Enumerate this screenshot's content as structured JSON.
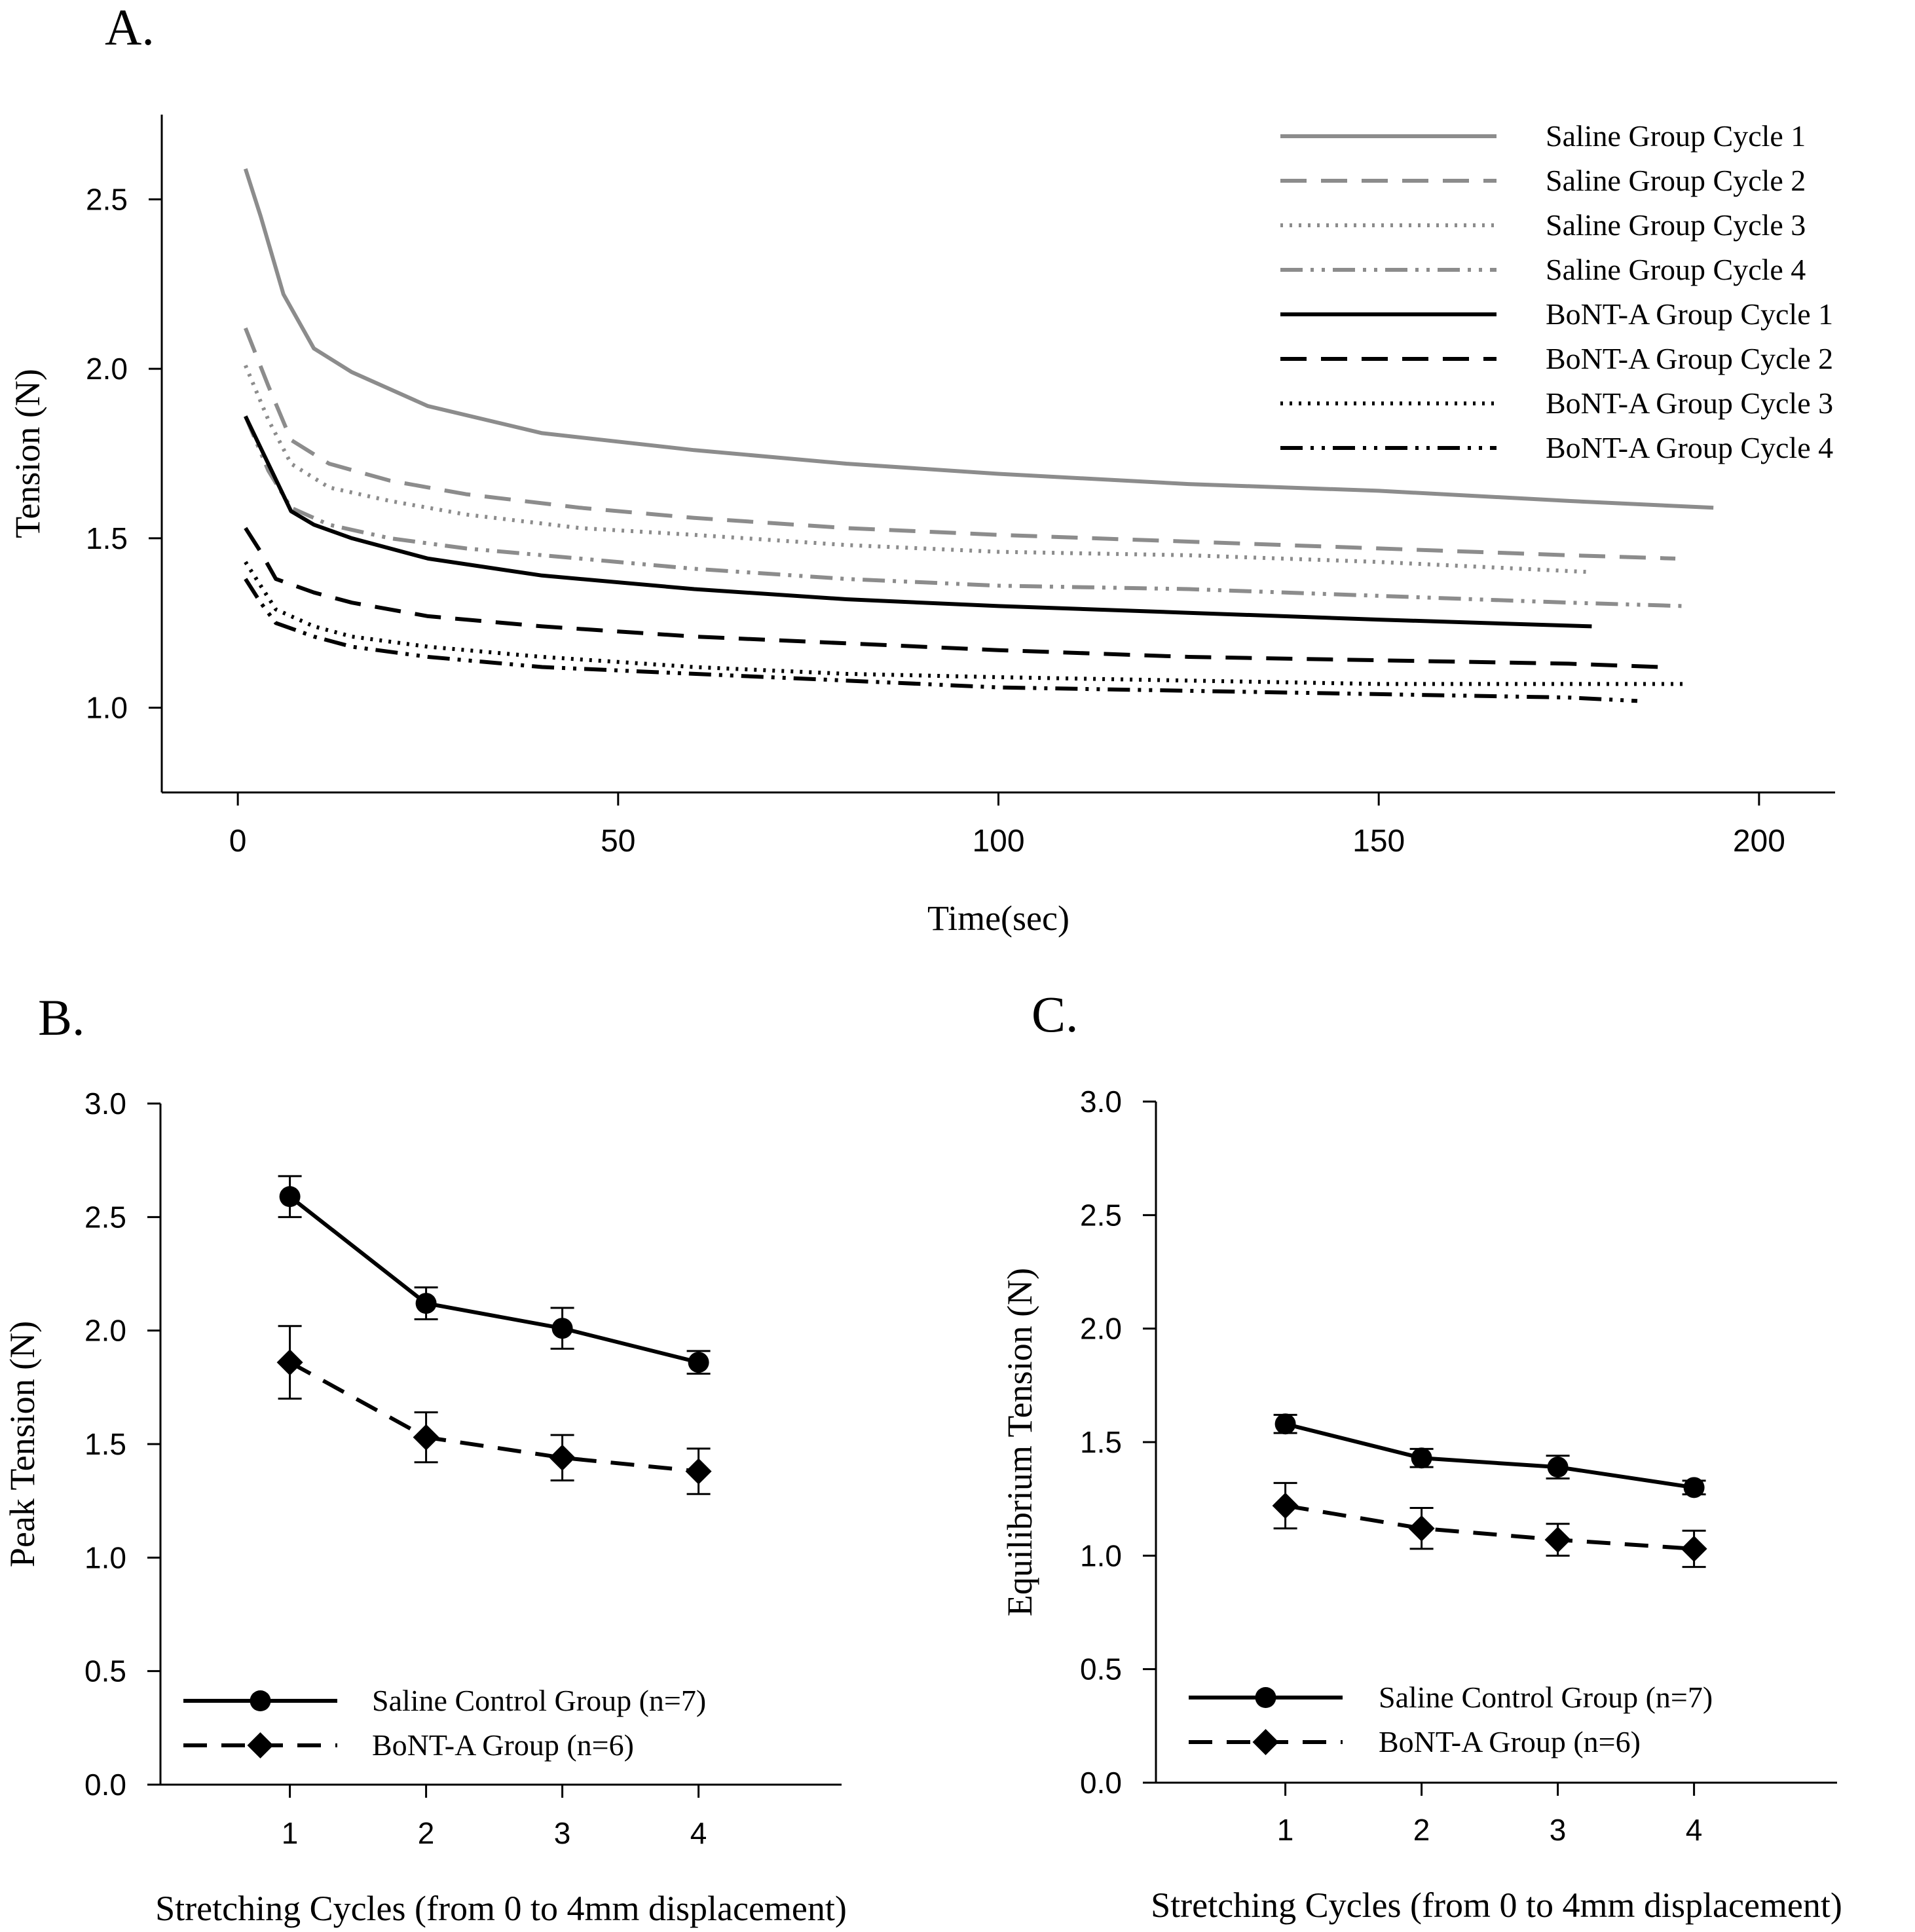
{
  "chart_data": [
    {
      "panel": "A.",
      "type": "line",
      "xlabel": "Time(sec)",
      "ylabel": "Tension (N)",
      "xlim": [
        -10,
        210
      ],
      "ylim": [
        0.75,
        2.75
      ],
      "xticks": [
        0,
        50,
        100,
        150,
        200
      ],
      "yticks": [
        1.0,
        1.5,
        2.0,
        2.5
      ],
      "legend_position": "top-right",
      "series": [
        {
          "name": "Saline Group Cycle 1",
          "color": "#8c8c8c",
          "dash": "solid",
          "x": [
            1,
            3,
            6,
            10,
            15,
            25,
            40,
            60,
            80,
            100,
            125,
            150,
            175,
            194
          ],
          "y": [
            2.59,
            2.45,
            2.22,
            2.06,
            1.99,
            1.89,
            1.81,
            1.76,
            1.72,
            1.69,
            1.66,
            1.64,
            1.61,
            1.59
          ]
        },
        {
          "name": "Saline Group Cycle 2",
          "color": "#8c8c8c",
          "dash": "longdash",
          "x": [
            1,
            4,
            7,
            12,
            20,
            30,
            45,
            60,
            80,
            100,
            125,
            150,
            175,
            189
          ],
          "y": [
            2.12,
            1.95,
            1.79,
            1.72,
            1.67,
            1.63,
            1.59,
            1.56,
            1.53,
            1.51,
            1.49,
            1.47,
            1.45,
            1.44
          ]
        },
        {
          "name": "Saline Group Cycle 3",
          "color": "#8c8c8c",
          "dash": "dot",
          "x": [
            1,
            4,
            7,
            12,
            20,
            30,
            45,
            60,
            80,
            100,
            125,
            150,
            178
          ],
          "y": [
            2.01,
            1.85,
            1.72,
            1.65,
            1.61,
            1.57,
            1.53,
            1.51,
            1.48,
            1.46,
            1.45,
            1.43,
            1.4
          ]
        },
        {
          "name": "Saline Group Cycle 4",
          "color": "#8c8c8c",
          "dash": "dashdotdot",
          "x": [
            1,
            4,
            7,
            12,
            20,
            30,
            45,
            60,
            80,
            100,
            125,
            150,
            175,
            190
          ],
          "y": [
            1.86,
            1.7,
            1.59,
            1.54,
            1.5,
            1.47,
            1.44,
            1.41,
            1.38,
            1.36,
            1.35,
            1.33,
            1.31,
            1.3
          ]
        },
        {
          "name": "BoNT-A Group Cycle 1",
          "color": "#000000",
          "dash": "solid",
          "x": [
            1,
            4,
            7,
            10,
            15,
            25,
            40,
            60,
            80,
            100,
            125,
            150,
            178
          ],
          "y": [
            1.86,
            1.72,
            1.58,
            1.54,
            1.5,
            1.44,
            1.39,
            1.35,
            1.32,
            1.3,
            1.28,
            1.26,
            1.24
          ]
        },
        {
          "name": "BoNT-A Group Cycle 2",
          "color": "#000000",
          "dash": "longdash",
          "x": [
            1,
            3,
            5,
            10,
            15,
            25,
            40,
            60,
            80,
            100,
            125,
            150,
            175,
            187
          ],
          "y": [
            1.53,
            1.46,
            1.38,
            1.34,
            1.31,
            1.27,
            1.24,
            1.21,
            1.19,
            1.17,
            1.15,
            1.14,
            1.13,
            1.12
          ]
        },
        {
          "name": "BoNT-A Group Cycle 3",
          "color": "#000000",
          "dash": "dot",
          "x": [
            1,
            3,
            5,
            10,
            15,
            25,
            40,
            60,
            80,
            100,
            125,
            150,
            175,
            190
          ],
          "y": [
            1.43,
            1.36,
            1.29,
            1.24,
            1.21,
            1.18,
            1.15,
            1.12,
            1.1,
            1.09,
            1.08,
            1.07,
            1.07,
            1.07
          ]
        },
        {
          "name": "BoNT-A Group Cycle 4",
          "color": "#000000",
          "dash": "dashdotdot",
          "x": [
            1,
            3,
            5,
            10,
            15,
            25,
            40,
            60,
            80,
            100,
            125,
            150,
            175,
            184
          ],
          "y": [
            1.38,
            1.31,
            1.25,
            1.21,
            1.18,
            1.15,
            1.12,
            1.1,
            1.08,
            1.06,
            1.05,
            1.04,
            1.03,
            1.02
          ]
        }
      ]
    },
    {
      "panel": "B.",
      "type": "line",
      "xlabel": "Stretching Cycles (from 0 to 4mm displacement)",
      "ylabel": "Peak Tension (N)",
      "xlim": [
        0.05,
        5.05
      ],
      "ylim": [
        0.0,
        3.0
      ],
      "xticks": [
        1,
        2,
        3,
        4
      ],
      "yticks": [
        0.0,
        0.5,
        1.0,
        1.5,
        2.0,
        2.5,
        3.0
      ],
      "legend_position": "bottom-left",
      "series": [
        {
          "name": "Saline Control Group (n=7)",
          "marker": "circle",
          "dash": "solid",
          "x": [
            1,
            2,
            3,
            4
          ],
          "y": [
            2.59,
            2.12,
            2.01,
            1.86
          ],
          "err": [
            0.09,
            0.07,
            0.09,
            0.05
          ]
        },
        {
          "name": "BoNT-A Group (n=6)",
          "marker": "diamond",
          "dash": "dash",
          "x": [
            1,
            2,
            3,
            4
          ],
          "y": [
            1.86,
            1.53,
            1.44,
            1.38
          ],
          "err": [
            0.16,
            0.11,
            0.1,
            0.1
          ]
        }
      ]
    },
    {
      "panel": "C.",
      "type": "line",
      "xlabel": "Stretching Cycles (from 0 to 4mm displacement)",
      "ylabel": "Equilibrium Tension (N)",
      "xlim": [
        0.05,
        5.05
      ],
      "ylim": [
        0.0,
        3.0
      ],
      "xticks": [
        1,
        2,
        3,
        4
      ],
      "yticks": [
        0.0,
        0.5,
        1.0,
        1.5,
        2.0,
        2.5,
        3.0
      ],
      "legend_position": "bottom-left",
      "series": [
        {
          "name": "Saline Control Group (n=7)",
          "marker": "circle",
          "dash": "solid",
          "x": [
            1,
            2,
            3,
            4
          ],
          "y": [
            1.58,
            1.43,
            1.39,
            1.3
          ],
          "err": [
            0.04,
            0.04,
            0.05,
            0.03
          ]
        },
        {
          "name": "BoNT-A Group (n=6)",
          "marker": "diamond",
          "dash": "dash",
          "x": [
            1,
            2,
            3,
            4
          ],
          "y": [
            1.22,
            1.12,
            1.07,
            1.03
          ],
          "err": [
            0.1,
            0.09,
            0.07,
            0.08
          ]
        }
      ]
    }
  ]
}
